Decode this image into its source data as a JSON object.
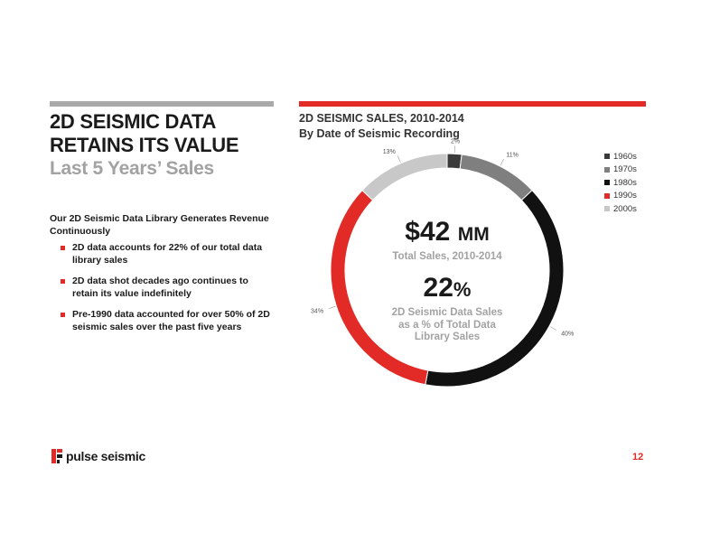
{
  "header": {
    "title_line1": "2D SEISMIC DATA",
    "title_line2": "RETAINS ITS VALUE",
    "subtitle": "Last 5 Years’ Sales"
  },
  "body": {
    "intro": "Our 2D Seismic Data Library Generates Revenue Continuously",
    "bullets": [
      "2D data accounts for 22% of our total data library sales",
      "2D data shot decades ago continues to retain its value indefinitely",
      "Pre-1990 data accounted for over 50% of 2D seismic sales over the past five years"
    ]
  },
  "chart_header": {
    "title": "2D SEISMIC SALES, 2010-2014",
    "subtitle": "By Date of Seismic Recording"
  },
  "center": {
    "value": "$42",
    "unit": "MM",
    "value_label": "Total Sales, 2010-2014",
    "pct_value": "22",
    "pct_sign": "%",
    "pct_label_line1": "2D Seismic Data Sales",
    "pct_label_line2": "as a % of Total Data",
    "pct_label_line3": "Library Sales"
  },
  "chart_data": {
    "type": "pie",
    "donut": true,
    "categories": [
      "1960s",
      "1970s",
      "1980s",
      "1990s",
      "2000s"
    ],
    "values": [
      2,
      11,
      40,
      34,
      13
    ],
    "labels": [
      "2%",
      "11%",
      "40%",
      "34%",
      "13%"
    ],
    "colors": [
      "#3a3a3a",
      "#7f7f7f",
      "#111111",
      "#e22b26",
      "#c8c8c8"
    ],
    "legend_position": "right"
  },
  "footer": {
    "logo_text": "pulse seismic",
    "page_number": "12",
    "brand_color": "#e22b26"
  }
}
